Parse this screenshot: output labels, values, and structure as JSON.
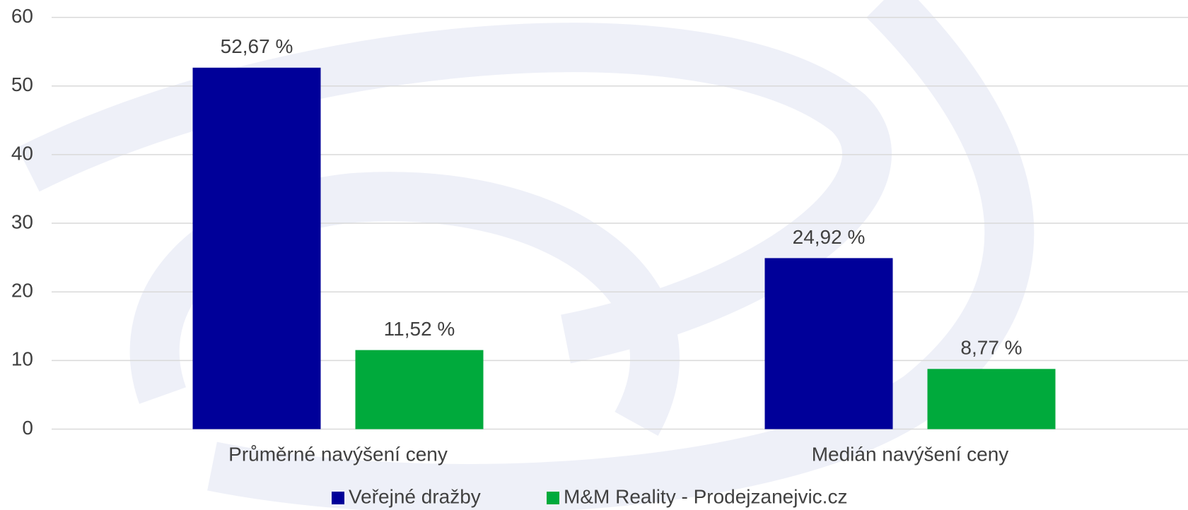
{
  "chart_data": {
    "type": "bar",
    "categories": [
      "Průměrné navýšení ceny",
      "Medián navýšení ceny"
    ],
    "series": [
      {
        "name": "Veřejné dražby",
        "color": "#000099",
        "values": [
          52.67,
          24.92
        ],
        "value_labels": [
          "52,67 %",
          "24,92 %"
        ]
      },
      {
        "name": "M&M Reality - Prodejzanejvic.cz",
        "color": "#00aa3c",
        "values": [
          11.52,
          8.77
        ],
        "value_labels": [
          "11,52 %",
          "8,77 %"
        ]
      }
    ],
    "ylim": [
      0,
      60
    ],
    "yticks": [
      0,
      10,
      20,
      30,
      40,
      50,
      60
    ],
    "grid": true,
    "legend": "bottom"
  }
}
